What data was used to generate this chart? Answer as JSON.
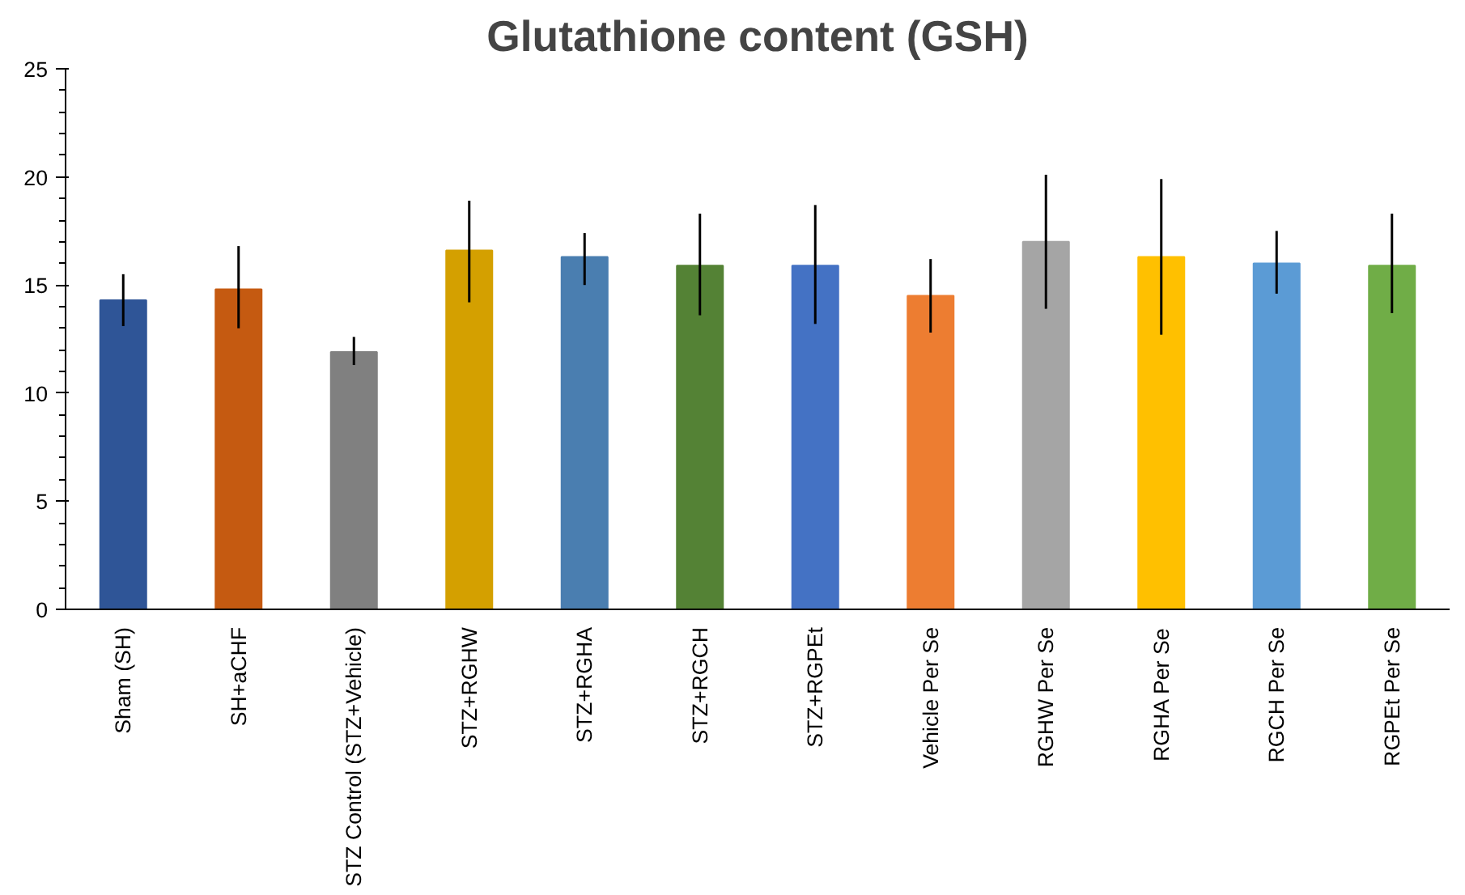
{
  "chart_data": {
    "type": "bar",
    "title": "Glutathione content (GSH)",
    "categories": [
      "Sham (SH)",
      "SH+aCHF",
      "STZ Control (STZ+Vehicle)",
      "STZ+RGHW",
      "STZ+RGHA",
      "STZ+RGCH",
      "STZ+RGPEt",
      "Vehicle Per Se",
      "RGHW Per Se",
      "RGHA Per Se",
      "RGCH Per Se",
      "RGPEt Per Se"
    ],
    "values": [
      14.3,
      14.8,
      11.9,
      16.6,
      16.3,
      15.9,
      15.9,
      14.5,
      17.0,
      16.3,
      16.0,
      15.9
    ],
    "errors": [
      [
        13.1,
        15.5
      ],
      [
        13.0,
        16.8
      ],
      [
        11.3,
        12.6
      ],
      [
        14.2,
        18.9
      ],
      [
        15.0,
        17.4
      ],
      [
        13.6,
        18.3
      ],
      [
        13.2,
        18.7
      ],
      [
        12.8,
        16.2
      ],
      [
        13.9,
        20.1
      ],
      [
        12.7,
        19.9
      ],
      [
        14.6,
        17.5
      ],
      [
        13.7,
        18.3
      ]
    ],
    "colors": [
      "#2f5597",
      "#c55a11",
      "#808080",
      "#d4a000",
      "#4a7eb0",
      "#548235",
      "#4472c4",
      "#ed7d31",
      "#a5a5a5",
      "#ffc000",
      "#5b9bd5",
      "#70ad47"
    ],
    "ylim": [
      0,
      25
    ],
    "yticks": [
      0,
      5,
      10,
      15,
      20,
      25
    ],
    "grid": false
  }
}
